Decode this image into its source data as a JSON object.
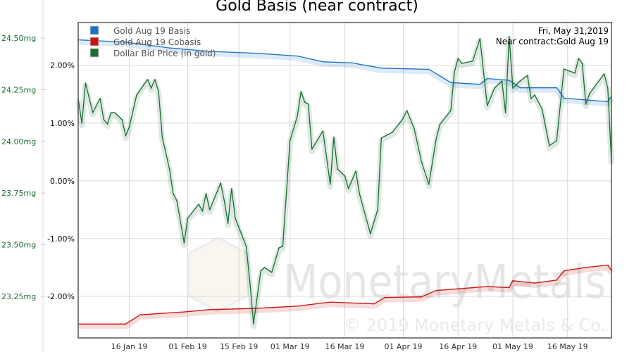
{
  "chart_data": {
    "type": "line",
    "title": "Gold Basis (near contract)",
    "annotation": [
      "Fri, May 31,2019",
      "Near contract:Gold Aug 19"
    ],
    "watermark": {
      "logo_text": "MonetaryMetals",
      "copyright": "© 2019 Monetary Metals & Co."
    },
    "legend_position": "top-left",
    "grid": true,
    "xlim": [
      "2019-01-02",
      "2019-05-28"
    ],
    "x_ticks": [
      {
        "date": "2019-01-16",
        "label": "16 Jan 19"
      },
      {
        "date": "2019-02-01",
        "label": "01 Feb 19"
      },
      {
        "date": "2019-02-15",
        "label": "15 Feb 19"
      },
      {
        "date": "2019-03-01",
        "label": "01 Mar 19"
      },
      {
        "date": "2019-03-16",
        "label": "16 Mar 19"
      },
      {
        "date": "2019-04-01",
        "label": "01 Apr 19"
      },
      {
        "date": "2019-04-16",
        "label": "16 Apr 19"
      },
      {
        "date": "2019-05-01",
        "label": "01 May 19"
      },
      {
        "date": "2019-05-16",
        "label": "16 May 19"
      }
    ],
    "y_percent_axis": {
      "ylim": [
        -2.72,
        2.74
      ],
      "ticks": [
        2,
        1,
        0,
        -1,
        -2
      ],
      "labels": [
        "2.00%",
        "1.00%",
        "0.00%",
        "-1.00%",
        "-2.00%"
      ]
    },
    "y_mg_axis": {
      "ylim": [
        23.049,
        24.575
      ],
      "ticks": [
        24.5,
        24.25,
        24.0,
        23.75,
        23.5,
        23.25
      ],
      "labels": [
        "24.50mg",
        "24.25mg",
        "24.00mg",
        "23.75mg",
        "23.50mg",
        "23.25mg"
      ],
      "color": "#1a6b35"
    },
    "series": [
      {
        "name": "Gold Aug 19 Basis",
        "color": "#1a73c8",
        "axis": "percent",
        "x": [
          "2019-01-02",
          "2019-01-15",
          "2019-01-27",
          "2019-02-07",
          "2019-02-19",
          "2019-03-03",
          "2019-03-10",
          "2019-03-18",
          "2019-03-26",
          "2019-04-08",
          "2019-04-14",
          "2019-04-22",
          "2019-04-24",
          "2019-04-30",
          "2019-05-03",
          "2019-05-13",
          "2019-05-15",
          "2019-05-27",
          "2019-05-28"
        ],
        "y": [
          2.44,
          2.4,
          2.3,
          2.24,
          2.21,
          2.16,
          2.06,
          2.04,
          1.95,
          1.93,
          1.7,
          1.67,
          1.77,
          1.74,
          1.61,
          1.61,
          1.43,
          1.37,
          1.46
        ]
      },
      {
        "name": "Gold Aug 19 Cobasis",
        "color": "#c81414",
        "axis": "percent",
        "x": [
          "2019-01-02",
          "2019-01-15",
          "2019-01-19",
          "2019-01-31",
          "2019-02-07",
          "2019-02-19",
          "2019-03-03",
          "2019-03-12",
          "2019-03-24",
          "2019-03-27",
          "2019-04-06",
          "2019-04-10",
          "2019-04-16",
          "2019-04-24",
          "2019-04-30",
          "2019-05-01",
          "2019-05-07",
          "2019-05-13",
          "2019-05-15",
          "2019-05-21",
          "2019-05-27",
          "2019-05-28"
        ],
        "y": [
          -2.48,
          -2.48,
          -2.32,
          -2.27,
          -2.23,
          -2.21,
          -2.17,
          -2.1,
          -2.13,
          -2.02,
          -2.01,
          -1.9,
          -1.87,
          -1.83,
          -1.85,
          -1.73,
          -1.77,
          -1.72,
          -1.56,
          -1.5,
          -1.46,
          -1.56
        ]
      },
      {
        "name": "Dollar Bid Price (in gold)",
        "color": "#1a6b35",
        "axis": "mg",
        "x": [
          "2019-01-02",
          "2019-01-03",
          "2019-01-04",
          "2019-01-06",
          "2019-01-08",
          "2019-01-09",
          "2019-01-10",
          "2019-01-11",
          "2019-01-12",
          "2019-01-14",
          "2019-01-15",
          "2019-01-16",
          "2019-01-18",
          "2019-01-20",
          "2019-01-21",
          "2019-01-22",
          "2019-01-23",
          "2019-01-24",
          "2019-01-25",
          "2019-01-27",
          "2019-01-28",
          "2019-01-29",
          "2019-01-31",
          "2019-02-01",
          "2019-02-04",
          "2019-02-05",
          "2019-02-06",
          "2019-02-07",
          "2019-02-10",
          "2019-02-11",
          "2019-02-12",
          "2019-02-13",
          "2019-02-14",
          "2019-02-17",
          "2019-02-18",
          "2019-02-19",
          "2019-02-21",
          "2019-02-22",
          "2019-02-24",
          "2019-02-26",
          "2019-02-27",
          "2019-03-01",
          "2019-03-03",
          "2019-03-04",
          "2019-03-05",
          "2019-03-06",
          "2019-03-07",
          "2019-03-10",
          "2019-03-12",
          "2019-03-13",
          "2019-03-14",
          "2019-03-16",
          "2019-03-17",
          "2019-03-19",
          "2019-03-20",
          "2019-03-23",
          "2019-03-25",
          "2019-03-26",
          "2019-03-29",
          "2019-03-31",
          "2019-04-01",
          "2019-04-02",
          "2019-04-04",
          "2019-04-06",
          "2019-04-08",
          "2019-04-10",
          "2019-04-11",
          "2019-04-14",
          "2019-04-15",
          "2019-04-16",
          "2019-04-17",
          "2019-04-20",
          "2019-04-22",
          "2019-04-24",
          "2019-04-26",
          "2019-04-28",
          "2019-04-29",
          "2019-04-30",
          "2019-05-01",
          "2019-05-03",
          "2019-05-05",
          "2019-05-06",
          "2019-05-07",
          "2019-05-09",
          "2019-05-11",
          "2019-05-13",
          "2019-05-15",
          "2019-05-18",
          "2019-05-19",
          "2019-05-20",
          "2019-05-21",
          "2019-05-22",
          "2019-05-26",
          "2019-05-27",
          "2019-05-28"
        ],
        "y": [
          24.207,
          24.088,
          24.282,
          24.139,
          24.207,
          24.105,
          24.084,
          24.139,
          24.139,
          24.105,
          24.027,
          24.071,
          24.224,
          24.275,
          24.299,
          24.258,
          24.299,
          24.241,
          24.02,
          23.866,
          23.747,
          23.713,
          23.509,
          23.628,
          23.696,
          23.662,
          23.747,
          23.669,
          23.798,
          23.713,
          23.604,
          23.771,
          23.628,
          23.492,
          23.322,
          23.117,
          23.373,
          23.39,
          23.366,
          23.485,
          23.492,
          24.003,
          24.122,
          24.241,
          24.19,
          24.18,
          23.962,
          24.05,
          23.792,
          24.02,
          23.866,
          23.832,
          23.771,
          23.856,
          23.747,
          23.553,
          23.669,
          24.016,
          24.044,
          24.088,
          24.112,
          24.149,
          24.061,
          23.901,
          23.792,
          24.01,
          24.081,
          24.149,
          24.333,
          24.401,
          24.377,
          24.388,
          24.497,
          24.173,
          24.258,
          24.292,
          24.139,
          24.507,
          24.258,
          24.292,
          24.319,
          24.207,
          24.224,
          24.156,
          23.979,
          24.003,
          24.35,
          24.33,
          24.401,
          24.377,
          24.18,
          24.231,
          24.326,
          24.258,
          23.901
        ]
      }
    ]
  }
}
